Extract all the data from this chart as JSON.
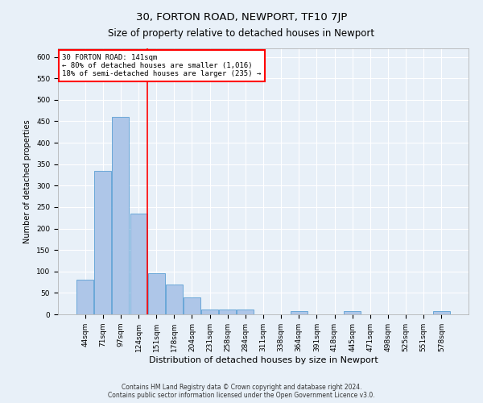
{
  "title": "30, FORTON ROAD, NEWPORT, TF10 7JP",
  "subtitle": "Size of property relative to detached houses in Newport",
  "xlabel": "Distribution of detached houses by size in Newport",
  "ylabel": "Number of detached properties",
  "categories": [
    "44sqm",
    "71sqm",
    "97sqm",
    "124sqm",
    "151sqm",
    "178sqm",
    "204sqm",
    "231sqm",
    "258sqm",
    "284sqm",
    "311sqm",
    "338sqm",
    "364sqm",
    "391sqm",
    "418sqm",
    "445sqm",
    "471sqm",
    "498sqm",
    "525sqm",
    "551sqm",
    "578sqm"
  ],
  "values": [
    80,
    335,
    460,
    235,
    95,
    70,
    40,
    12,
    12,
    12,
    0,
    0,
    8,
    0,
    0,
    8,
    0,
    0,
    0,
    0,
    8
  ],
  "bar_color": "#aec6e8",
  "bar_edge_color": "#5a9fd4",
  "bar_linewidth": 0.6,
  "vline_x": 3.5,
  "vline_color": "red",
  "vline_linewidth": 1.2,
  "annotation_text": "30 FORTON ROAD: 141sqm\n← 80% of detached houses are smaller (1,016)\n18% of semi-detached houses are larger (235) →",
  "annotation_box_color": "white",
  "annotation_box_edgecolor": "red",
  "annotation_fontsize": 6.5,
  "ylim": [
    0,
    620
  ],
  "yticks": [
    0,
    50,
    100,
    150,
    200,
    250,
    300,
    350,
    400,
    450,
    500,
    550,
    600
  ],
  "background_color": "#e8f0f8",
  "plot_background_color": "#e8f0f8",
  "grid_color": "white",
  "footer_text": "Contains HM Land Registry data © Crown copyright and database right 2024.\nContains public sector information licensed under the Open Government Licence v3.0.",
  "title_fontsize": 9.5,
  "subtitle_fontsize": 8.5,
  "xlabel_fontsize": 8,
  "ylabel_fontsize": 7,
  "tick_fontsize": 6.5,
  "footer_fontsize": 5.5
}
